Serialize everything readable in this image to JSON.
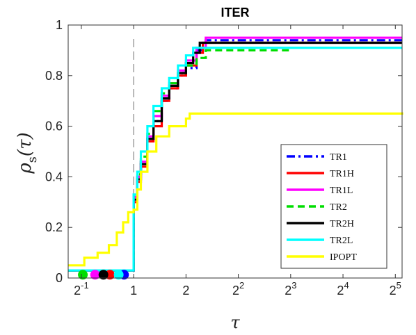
{
  "chart_data": {
    "type": "line",
    "title": "ITER",
    "xlabel": "τ",
    "ylabel": "ρs(τ)",
    "ylabel_main": "ρ",
    "ylabel_sub": "s",
    "ylabel_arg": "(τ)",
    "x_scale": "log2",
    "xlim": [
      0.42,
      35
    ],
    "ylim": [
      0,
      1
    ],
    "x_ticks": [
      {
        "value": 0.5,
        "base": "2",
        "exp": "-1"
      },
      {
        "value": 1,
        "base": "1",
        "exp": ""
      },
      {
        "value": 2,
        "base": "2",
        "exp": ""
      },
      {
        "value": 4,
        "base": "2",
        "exp": "2"
      },
      {
        "value": 8,
        "base": "2",
        "exp": "3"
      },
      {
        "value": 16,
        "base": "2",
        "exp": "4"
      },
      {
        "value": 32,
        "base": "2",
        "exp": "5"
      }
    ],
    "y_ticks": [
      {
        "value": 0,
        "label": "0"
      },
      {
        "value": 0.2,
        "label": "0.2"
      },
      {
        "value": 0.4,
        "label": "0.4"
      },
      {
        "value": 0.6,
        "label": "0.6"
      },
      {
        "value": 0.8,
        "label": "0.8"
      },
      {
        "value": 1,
        "label": "1"
      }
    ],
    "reference_line_x": 1,
    "legend_position": "bottom-right",
    "series": [
      {
        "name": "TR1",
        "color": "#0000ff",
        "dash": "dashdot",
        "start_marker_x": 0.88,
        "points": [
          [
            0.42,
            0.03
          ],
          [
            0.98,
            0.03
          ],
          [
            1.0,
            0.32
          ],
          [
            1.05,
            0.4
          ],
          [
            1.1,
            0.46
          ],
          [
            1.2,
            0.55
          ],
          [
            1.3,
            0.62
          ],
          [
            1.45,
            0.7
          ],
          [
            1.6,
            0.75
          ],
          [
            1.8,
            0.8
          ],
          [
            2.0,
            0.83
          ],
          [
            2.3,
            0.9
          ],
          [
            2.6,
            0.94
          ],
          [
            35,
            0.94
          ]
        ]
      },
      {
        "name": "TR1H",
        "color": "#ff0000",
        "dash": "solid",
        "start_marker_x": 0.73,
        "points": [
          [
            0.42,
            0.03
          ],
          [
            0.98,
            0.03
          ],
          [
            1.0,
            0.3
          ],
          [
            1.05,
            0.38
          ],
          [
            1.1,
            0.44
          ],
          [
            1.2,
            0.54
          ],
          [
            1.3,
            0.6
          ],
          [
            1.45,
            0.7
          ],
          [
            1.6,
            0.75
          ],
          [
            1.8,
            0.8
          ],
          [
            2.0,
            0.84
          ],
          [
            2.3,
            0.89
          ],
          [
            2.5,
            0.93
          ],
          [
            35,
            0.93
          ]
        ]
      },
      {
        "name": "TR1L",
        "color": "#ff00ff",
        "dash": "solid",
        "start_marker_x": 0.6,
        "points": [
          [
            0.42,
            0.03
          ],
          [
            0.98,
            0.03
          ],
          [
            1.0,
            0.32
          ],
          [
            1.05,
            0.4
          ],
          [
            1.1,
            0.46
          ],
          [
            1.2,
            0.56
          ],
          [
            1.3,
            0.64
          ],
          [
            1.45,
            0.72
          ],
          [
            1.6,
            0.77
          ],
          [
            1.8,
            0.82
          ],
          [
            2.0,
            0.86
          ],
          [
            2.3,
            0.91
          ],
          [
            2.6,
            0.95
          ],
          [
            35,
            0.95
          ]
        ]
      },
      {
        "name": "TR2",
        "color": "#00dd00",
        "dash": "dashed",
        "start_marker_x": 0.51,
        "points": [
          [
            0.42,
            0.03
          ],
          [
            0.98,
            0.03
          ],
          [
            1.0,
            0.33
          ],
          [
            1.05,
            0.41
          ],
          [
            1.1,
            0.48
          ],
          [
            1.2,
            0.57
          ],
          [
            1.3,
            0.66
          ],
          [
            1.45,
            0.73
          ],
          [
            1.6,
            0.77
          ],
          [
            1.8,
            0.81
          ],
          [
            2.0,
            0.84
          ],
          [
            2.3,
            0.87
          ],
          [
            2.6,
            0.9
          ],
          [
            8.0,
            0.9
          ]
        ]
      },
      {
        "name": "TR2H",
        "color": "#000000",
        "dash": "solid",
        "start_marker_x": 0.67,
        "points": [
          [
            0.42,
            0.03
          ],
          [
            0.98,
            0.03
          ],
          [
            1.0,
            0.31
          ],
          [
            1.05,
            0.39
          ],
          [
            1.1,
            0.45
          ],
          [
            1.2,
            0.55
          ],
          [
            1.3,
            0.62
          ],
          [
            1.45,
            0.71
          ],
          [
            1.6,
            0.76
          ],
          [
            1.8,
            0.81
          ],
          [
            2.0,
            0.85
          ],
          [
            2.2,
            0.89
          ],
          [
            2.4,
            0.93
          ],
          [
            35,
            0.93
          ]
        ]
      },
      {
        "name": "TR2L",
        "color": "#00ffff",
        "dash": "solid",
        "start_marker_x": 0.82,
        "points": [
          [
            0.42,
            0.03
          ],
          [
            0.98,
            0.03
          ],
          [
            1.0,
            0.33
          ],
          [
            1.05,
            0.42
          ],
          [
            1.1,
            0.5
          ],
          [
            1.2,
            0.6
          ],
          [
            1.3,
            0.68
          ],
          [
            1.45,
            0.75
          ],
          [
            1.6,
            0.79
          ],
          [
            1.8,
            0.84
          ],
          [
            2.0,
            0.88
          ],
          [
            2.2,
            0.91
          ],
          [
            35,
            0.91
          ]
        ]
      },
      {
        "name": "IPOPT",
        "color": "#ffff00",
        "dash": "solid",
        "start_marker_x": null,
        "points": [
          [
            0.42,
            0.05
          ],
          [
            0.52,
            0.08
          ],
          [
            0.62,
            0.1
          ],
          [
            0.72,
            0.13
          ],
          [
            0.8,
            0.18
          ],
          [
            0.87,
            0.22
          ],
          [
            0.93,
            0.26
          ],
          [
            1.0,
            0.27
          ],
          [
            1.05,
            0.35
          ],
          [
            1.1,
            0.42
          ],
          [
            1.2,
            0.5
          ],
          [
            1.35,
            0.56
          ],
          [
            1.6,
            0.6
          ],
          [
            2.0,
            0.63
          ],
          [
            2.1,
            0.65
          ],
          [
            35,
            0.655
          ]
        ]
      }
    ]
  }
}
